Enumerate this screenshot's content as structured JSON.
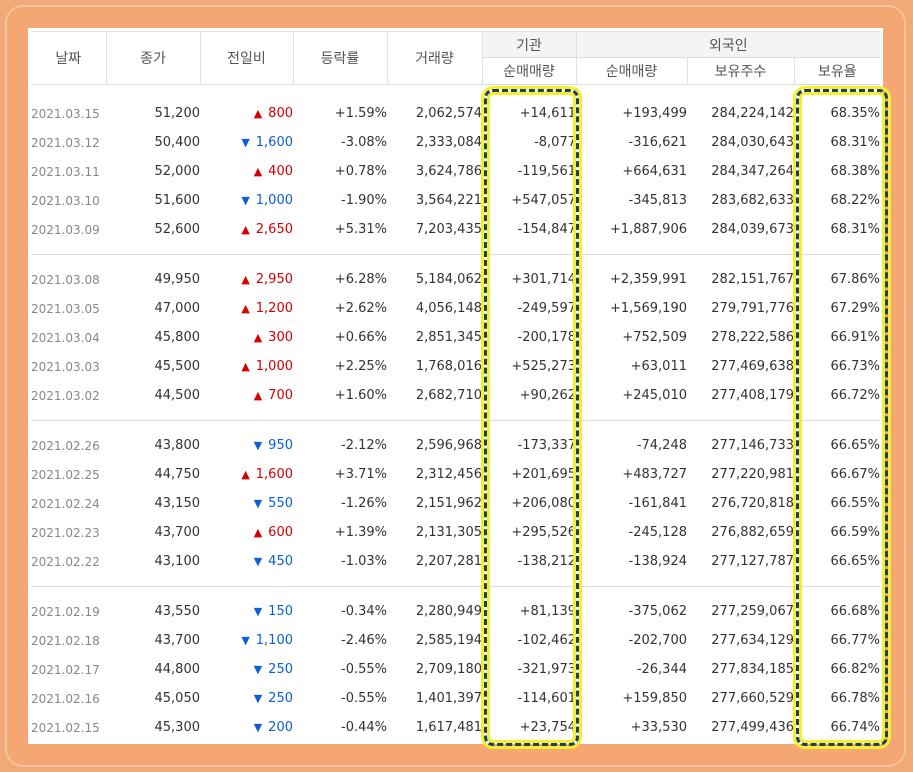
{
  "headers": {
    "date": "날짜",
    "close": "종가",
    "change": "전일비",
    "rate": "등락률",
    "volume": "거래량",
    "institution": "기관",
    "inst_net": "순매매량",
    "foreign": "외국인",
    "frgn_net": "순매매량",
    "frgn_holdings": "보유주수",
    "frgn_ratio": "보유율"
  },
  "icons": {
    "up": "▲",
    "down": "▼"
  },
  "colors": {
    "up": "#d60000",
    "down": "#0b5ed7",
    "highlight_border": "#1f3e67",
    "highlight_glow": "#f4f12a"
  },
  "groups": [
    [
      {
        "date": "2021.03.15",
        "close": "51,200",
        "dir": "up",
        "change": "800",
        "rate": "+1.59%",
        "volume": "2,062,574",
        "inst": "+14,611",
        "frgn": "+193,499",
        "holdings": "284,224,142",
        "ratio": "68.35%"
      },
      {
        "date": "2021.03.12",
        "close": "50,400",
        "dir": "down",
        "change": "1,600",
        "rate": "-3.08%",
        "volume": "2,333,084",
        "inst": "-8,077",
        "frgn": "-316,621",
        "holdings": "284,030,643",
        "ratio": "68.31%"
      },
      {
        "date": "2021.03.11",
        "close": "52,000",
        "dir": "up",
        "change": "400",
        "rate": "+0.78%",
        "volume": "3,624,786",
        "inst": "-119,561",
        "frgn": "+664,631",
        "holdings": "284,347,264",
        "ratio": "68.38%"
      },
      {
        "date": "2021.03.10",
        "close": "51,600",
        "dir": "down",
        "change": "1,000",
        "rate": "-1.90%",
        "volume": "3,564,221",
        "inst": "+547,057",
        "frgn": "-345,813",
        "holdings": "283,682,633",
        "ratio": "68.22%"
      },
      {
        "date": "2021.03.09",
        "close": "52,600",
        "dir": "up",
        "change": "2,650",
        "rate": "+5.31%",
        "volume": "7,203,435",
        "inst": "-154,847",
        "frgn": "+1,887,906",
        "holdings": "284,039,673",
        "ratio": "68.31%"
      }
    ],
    [
      {
        "date": "2021.03.08",
        "close": "49,950",
        "dir": "up",
        "change": "2,950",
        "rate": "+6.28%",
        "volume": "5,184,062",
        "inst": "+301,714",
        "frgn": "+2,359,991",
        "holdings": "282,151,767",
        "ratio": "67.86%"
      },
      {
        "date": "2021.03.05",
        "close": "47,000",
        "dir": "up",
        "change": "1,200",
        "rate": "+2.62%",
        "volume": "4,056,148",
        "inst": "-249,597",
        "frgn": "+1,569,190",
        "holdings": "279,791,776",
        "ratio": "67.29%"
      },
      {
        "date": "2021.03.04",
        "close": "45,800",
        "dir": "up",
        "change": "300",
        "rate": "+0.66%",
        "volume": "2,851,345",
        "inst": "-200,178",
        "frgn": "+752,509",
        "holdings": "278,222,586",
        "ratio": "66.91%"
      },
      {
        "date": "2021.03.03",
        "close": "45,500",
        "dir": "up",
        "change": "1,000",
        "rate": "+2.25%",
        "volume": "1,768,016",
        "inst": "+525,273",
        "frgn": "+63,011",
        "holdings": "277,469,638",
        "ratio": "66.73%"
      },
      {
        "date": "2021.03.02",
        "close": "44,500",
        "dir": "up",
        "change": "700",
        "rate": "+1.60%",
        "volume": "2,682,710",
        "inst": "+90,262",
        "frgn": "+245,010",
        "holdings": "277,408,179",
        "ratio": "66.72%"
      }
    ],
    [
      {
        "date": "2021.02.26",
        "close": "43,800",
        "dir": "down",
        "change": "950",
        "rate": "-2.12%",
        "volume": "2,596,968",
        "inst": "-173,337",
        "frgn": "-74,248",
        "holdings": "277,146,733",
        "ratio": "66.65%"
      },
      {
        "date": "2021.02.25",
        "close": "44,750",
        "dir": "up",
        "change": "1,600",
        "rate": "+3.71%",
        "volume": "2,312,456",
        "inst": "+201,695",
        "frgn": "+483,727",
        "holdings": "277,220,981",
        "ratio": "66.67%"
      },
      {
        "date": "2021.02.24",
        "close": "43,150",
        "dir": "down",
        "change": "550",
        "rate": "-1.26%",
        "volume": "2,151,962",
        "inst": "+206,080",
        "frgn": "-161,841",
        "holdings": "276,720,818",
        "ratio": "66.55%"
      },
      {
        "date": "2021.02.23",
        "close": "43,700",
        "dir": "up",
        "change": "600",
        "rate": "+1.39%",
        "volume": "2,131,305",
        "inst": "+295,526",
        "frgn": "-245,128",
        "holdings": "276,882,659",
        "ratio": "66.59%"
      },
      {
        "date": "2021.02.22",
        "close": "43,100",
        "dir": "down",
        "change": "450",
        "rate": "-1.03%",
        "volume": "2,207,281",
        "inst": "-138,212",
        "frgn": "-138,924",
        "holdings": "277,127,787",
        "ratio": "66.65%"
      }
    ],
    [
      {
        "date": "2021.02.19",
        "close": "43,550",
        "dir": "down",
        "change": "150",
        "rate": "-0.34%",
        "volume": "2,280,949",
        "inst": "+81,139",
        "frgn": "-375,062",
        "holdings": "277,259,067",
        "ratio": "66.68%"
      },
      {
        "date": "2021.02.18",
        "close": "43,700",
        "dir": "down",
        "change": "1,100",
        "rate": "-2.46%",
        "volume": "2,585,194",
        "inst": "-102,462",
        "frgn": "-202,700",
        "holdings": "277,634,129",
        "ratio": "66.77%"
      },
      {
        "date": "2021.02.17",
        "close": "44,800",
        "dir": "down",
        "change": "250",
        "rate": "-0.55%",
        "volume": "2,709,180",
        "inst": "-321,973",
        "frgn": "-26,344",
        "holdings": "277,834,185",
        "ratio": "66.82%"
      },
      {
        "date": "2021.02.16",
        "close": "45,050",
        "dir": "down",
        "change": "250",
        "rate": "-0.55%",
        "volume": "1,401,397",
        "inst": "-114,601",
        "frgn": "+159,850",
        "holdings": "277,660,529",
        "ratio": "66.78%"
      },
      {
        "date": "2021.02.15",
        "close": "45,300",
        "dir": "down",
        "change": "200",
        "rate": "-0.44%",
        "volume": "1,617,481",
        "inst": "+23,754",
        "frgn": "+33,530",
        "holdings": "277,499,436",
        "ratio": "66.74%"
      }
    ]
  ]
}
